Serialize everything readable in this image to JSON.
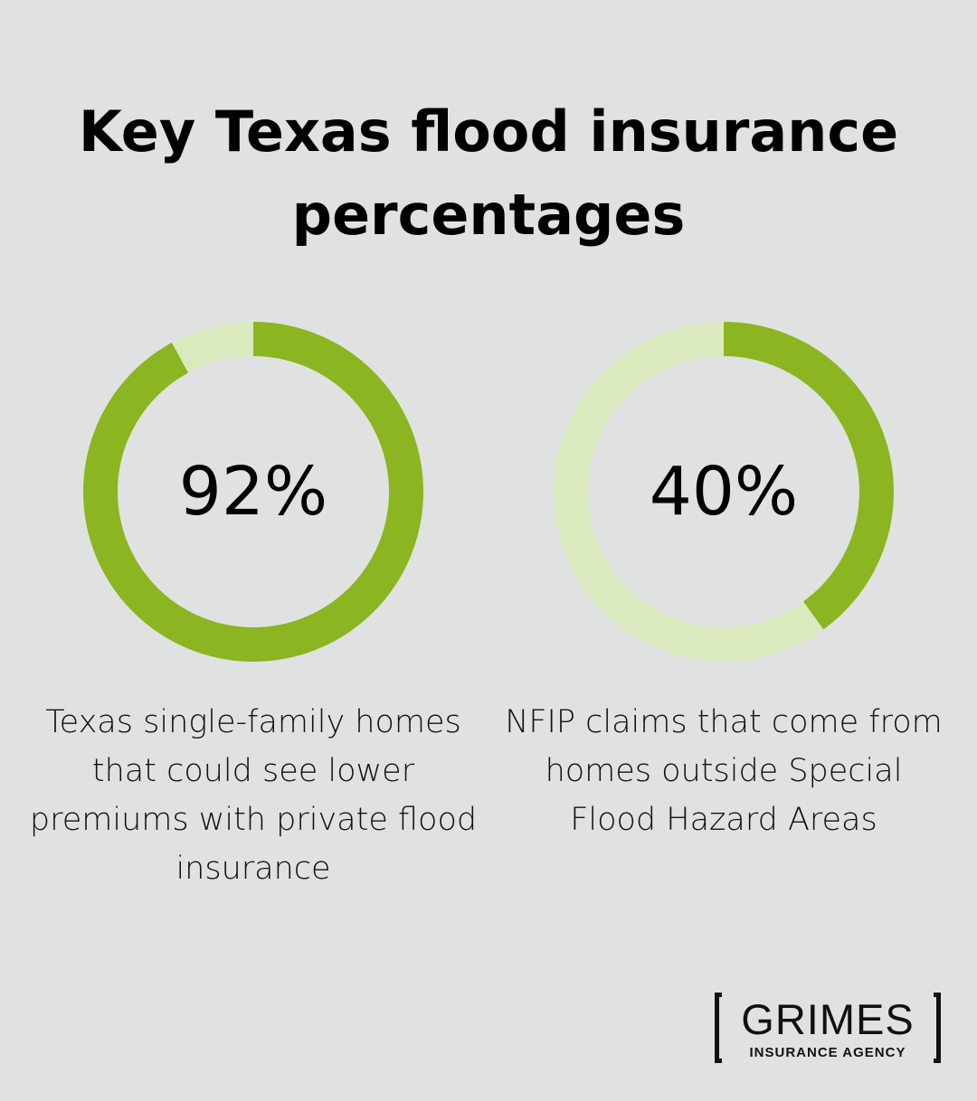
{
  "title": "Key Texas flood insurance percentages",
  "chart_data": [
    {
      "type": "pie",
      "value": 92,
      "value_label": "92%",
      "description": "Texas single-family homes that could see lower premiums with private flood insurance",
      "colors": {
        "filled": "#8bb521",
        "remaining": "#dbe9bf"
      }
    },
    {
      "type": "pie",
      "value": 40,
      "value_label": "40%",
      "description": "NFIP claims that come from homes outside Special Flood Hazard Areas",
      "colors": {
        "filled": "#8bb521",
        "remaining": "#dbe9bf"
      }
    }
  ],
  "logo": {
    "name": "GRIMES",
    "subtitle": "INSURANCE AGENCY"
  }
}
